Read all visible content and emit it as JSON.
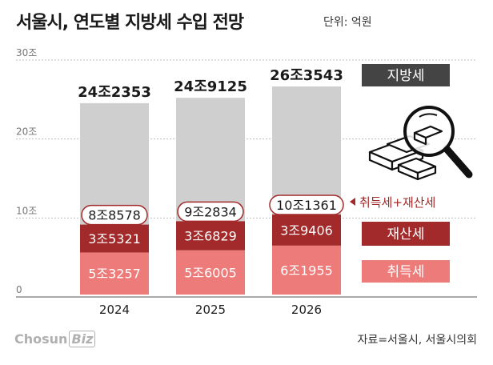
{
  "title": "서울시, 연도별 지방세 수입 전망",
  "unit": "단위: 억원",
  "source": "자료=서울시, 서울시의회",
  "logo": {
    "main": "Chosun",
    "suffix": "Biz"
  },
  "colors": {
    "total": "#cfcfcf",
    "property": "#a32a2a",
    "acquisition": "#ec7b79",
    "label_dark": "#444444",
    "grid": "#bdbdbd"
  },
  "chart_data": {
    "type": "bar",
    "stacked": true,
    "categories": [
      "2024",
      "2025",
      "2026"
    ],
    "ylim": [
      0,
      300000
    ],
    "yticks": [
      {
        "value": 0,
        "label": "0"
      },
      {
        "value": 100000,
        "label": "10조"
      },
      {
        "value": 200000,
        "label": "20조"
      },
      {
        "value": 300000,
        "label": "30조"
      }
    ],
    "total": {
      "name": "지방세",
      "values": [
        242353,
        249125,
        263543
      ],
      "labels": [
        "24조2353",
        "24조9125",
        "26조3543"
      ]
    },
    "series": [
      {
        "name": "취득세",
        "values": [
          53257,
          56005,
          61955
        ],
        "labels": [
          "5조3257",
          "5조6005",
          "6조1955"
        ]
      },
      {
        "name": "재산세",
        "values": [
          35321,
          36829,
          39406
        ],
        "labels": [
          "3조5321",
          "3조6829",
          "3조9406"
        ]
      }
    ],
    "combined": {
      "name": "취득세+재산세",
      "values": [
        88578,
        92834,
        101361
      ],
      "labels": [
        "8조8578",
        "9조2834",
        "10조1361"
      ]
    }
  }
}
